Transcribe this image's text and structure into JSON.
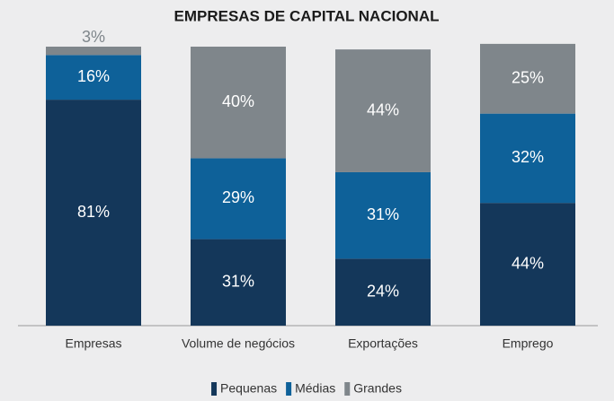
{
  "chart_data": {
    "type": "stacked_bar",
    "title": "EMPRESAS DE CAPITAL NACIONAL",
    "categories": [
      "Empresas",
      "Volume de negócios",
      "Exportações",
      "Emprego"
    ],
    "series": [
      {
        "name": "Pequenas",
        "color": "#14375a",
        "values": [
          81,
          31,
          24,
          44
        ],
        "value_labels": [
          "81%",
          "31%",
          "24%",
          "44%"
        ]
      },
      {
        "name": "Médias",
        "color": "#0e6199",
        "values": [
          16,
          29,
          31,
          32
        ],
        "value_labels": [
          "16%",
          "29%",
          "31%",
          "32%"
        ]
      },
      {
        "name": "Grandes",
        "color": "#7f868b",
        "values": [
          3,
          40,
          44,
          25
        ],
        "value_labels": [
          "3%",
          "40%",
          "44%",
          "25%"
        ]
      }
    ],
    "legend": "bottom"
  }
}
